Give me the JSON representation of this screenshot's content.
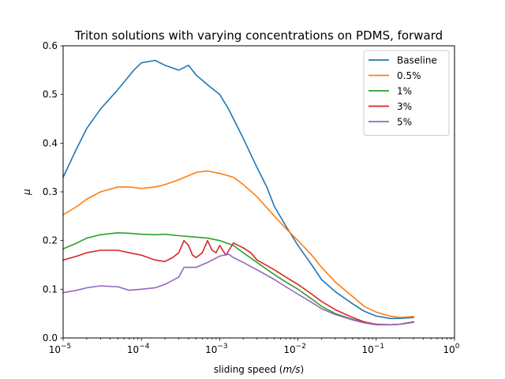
{
  "chart_data": {
    "type": "line",
    "title": "Triton solutions with varying concentrations on PDMS, forward",
    "xlabel": "sliding speed (m/s)",
    "ylabel": "μ",
    "xscale": "log",
    "xlim": [
      1e-05,
      1
    ],
    "ylim": [
      0,
      0.6
    ],
    "x_ticks": [
      1e-05,
      0.0001,
      0.001,
      0.01,
      0.1,
      1
    ],
    "x_tick_labels": [
      {
        "base": "10",
        "exp": "−5"
      },
      {
        "base": "10",
        "exp": "−4"
      },
      {
        "base": "10",
        "exp": "−3"
      },
      {
        "base": "10",
        "exp": "−2"
      },
      {
        "base": "10",
        "exp": "−1"
      },
      {
        "base": "10",
        "exp": "0"
      }
    ],
    "y_ticks": [
      0.0,
      0.1,
      0.2,
      0.3,
      0.4,
      0.5,
      0.6
    ],
    "y_tick_labels": [
      "0.0",
      "0.1",
      "0.2",
      "0.3",
      "0.4",
      "0.5",
      "0.6"
    ],
    "grid": false,
    "legend_position": "top-right",
    "series": [
      {
        "name": "Baseline",
        "color": "#1f77b4",
        "x": [
          1e-05,
          1.5e-05,
          2e-05,
          3e-05,
          5e-05,
          8e-05,
          0.0001,
          0.00015,
          0.0002,
          0.0003,
          0.0004,
          0.0005,
          0.0007,
          0.001,
          0.0013,
          0.0015,
          0.002,
          0.003,
          0.004,
          0.005,
          0.007,
          0.01,
          0.015,
          0.02,
          0.03,
          0.05,
          0.07,
          0.1,
          0.15,
          0.2,
          0.3
        ],
        "y": [
          0.33,
          0.39,
          0.43,
          0.47,
          0.51,
          0.55,
          0.565,
          0.57,
          0.56,
          0.55,
          0.56,
          0.54,
          0.52,
          0.5,
          0.47,
          0.45,
          0.41,
          0.35,
          0.31,
          0.27,
          0.23,
          0.19,
          0.15,
          0.12,
          0.095,
          0.07,
          0.055,
          0.045,
          0.04,
          0.04,
          0.042
        ]
      },
      {
        "name": "0.5%",
        "color": "#ff7f0e",
        "x": [
          1e-05,
          1.5e-05,
          2e-05,
          3e-05,
          5e-05,
          7e-05,
          0.0001,
          0.00015,
          0.0002,
          0.0003,
          0.0005,
          0.0007,
          0.001,
          0.0015,
          0.002,
          0.003,
          0.005,
          0.007,
          0.01,
          0.015,
          0.02,
          0.03,
          0.05,
          0.07,
          0.1,
          0.15,
          0.2,
          0.3
        ],
        "y": [
          0.253,
          0.27,
          0.285,
          0.3,
          0.31,
          0.31,
          0.307,
          0.31,
          0.315,
          0.325,
          0.34,
          0.343,
          0.338,
          0.33,
          0.315,
          0.29,
          0.25,
          0.225,
          0.2,
          0.17,
          0.145,
          0.115,
          0.085,
          0.065,
          0.053,
          0.045,
          0.042,
          0.044
        ]
      },
      {
        "name": "1%",
        "color": "#2ca02c",
        "x": [
          1e-05,
          1.5e-05,
          2e-05,
          3e-05,
          5e-05,
          7e-05,
          0.0001,
          0.00015,
          0.0002,
          0.0003,
          0.0005,
          0.0007,
          0.001,
          0.0015,
          0.002,
          0.003,
          0.005,
          0.007,
          0.01,
          0.015,
          0.02,
          0.03,
          0.05,
          0.07,
          0.1,
          0.15,
          0.2,
          0.3
        ],
        "y": [
          0.183,
          0.195,
          0.205,
          0.212,
          0.216,
          0.215,
          0.213,
          0.212,
          0.213,
          0.21,
          0.207,
          0.205,
          0.2,
          0.19,
          0.175,
          0.155,
          0.13,
          0.115,
          0.1,
          0.08,
          0.065,
          0.05,
          0.038,
          0.032,
          0.028,
          0.027,
          0.028,
          0.033
        ]
      },
      {
        "name": "3%",
        "color": "#d62728",
        "x": [
          1e-05,
          1.5e-05,
          2e-05,
          3e-05,
          5e-05,
          7e-05,
          0.0001,
          0.00015,
          0.0002,
          0.00025,
          0.0003,
          0.00035,
          0.0004,
          0.00045,
          0.0005,
          0.0006,
          0.0007,
          0.0008,
          0.0009,
          0.001,
          0.0012,
          0.0015,
          0.002,
          0.0025,
          0.003,
          0.005,
          0.007,
          0.01,
          0.015,
          0.02,
          0.03,
          0.05,
          0.07,
          0.1,
          0.15,
          0.2,
          0.3
        ],
        "y": [
          0.16,
          0.168,
          0.175,
          0.18,
          0.18,
          0.175,
          0.17,
          0.16,
          0.157,
          0.165,
          0.175,
          0.2,
          0.19,
          0.17,
          0.165,
          0.175,
          0.2,
          0.18,
          0.175,
          0.19,
          0.17,
          0.195,
          0.185,
          0.175,
          0.16,
          0.14,
          0.125,
          0.11,
          0.09,
          0.075,
          0.058,
          0.042,
          0.033,
          0.028,
          0.027,
          0.028,
          0.033
        ]
      },
      {
        "name": "5%",
        "color": "#9467bd",
        "x": [
          1e-05,
          1.5e-05,
          2e-05,
          3e-05,
          5e-05,
          7e-05,
          0.0001,
          0.00015,
          0.0002,
          0.0003,
          0.00035,
          0.0004,
          0.0005,
          0.0007,
          0.001,
          0.0013,
          0.0015,
          0.002,
          0.003,
          0.005,
          0.007,
          0.01,
          0.015,
          0.02,
          0.03,
          0.05,
          0.07,
          0.1,
          0.15,
          0.2,
          0.3
        ],
        "y": [
          0.093,
          0.098,
          0.103,
          0.107,
          0.105,
          0.098,
          0.1,
          0.103,
          0.11,
          0.125,
          0.145,
          0.145,
          0.145,
          0.155,
          0.168,
          0.172,
          0.165,
          0.155,
          0.14,
          0.12,
          0.105,
          0.09,
          0.073,
          0.06,
          0.048,
          0.037,
          0.031,
          0.027,
          0.027,
          0.028,
          0.032
        ]
      }
    ]
  }
}
